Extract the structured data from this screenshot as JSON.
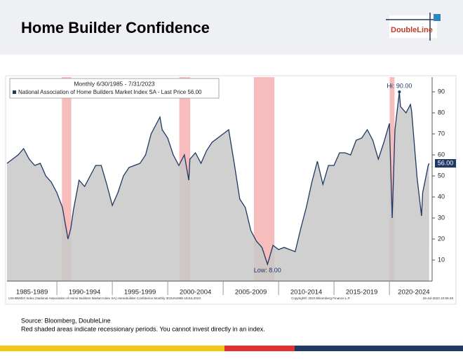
{
  "header": {
    "title": "Home Builder Confidence",
    "logo": "DoubleLine"
  },
  "chart_data": {
    "type": "area",
    "legend_title": "Monthly 6/30/1985 - 7/31/2023",
    "series": [
      {
        "name": "National Association of Home Builders Market Index SA - Last Price 56.00",
        "color": "#1f3864",
        "fill": "#c8c8c8",
        "x": [
          1985.5,
          1986,
          1986.5,
          1987,
          1987.5,
          1988,
          1988.5,
          1989,
          1989.5,
          1990,
          1990.5,
          1991,
          1991.25,
          1991.5,
          1992,
          1992.5,
          1993,
          1993.5,
          1994,
          1994.5,
          1995,
          1995.5,
          1996,
          1996.5,
          1997,
          1997.5,
          1998,
          1998.5,
          1999,
          1999.3,
          1999.5,
          2000,
          2000.5,
          2001,
          2001.5,
          2001.9,
          2002,
          2002.5,
          2003,
          2003.5,
          2004,
          2004.5,
          2005,
          2005.5,
          2006,
          2006.5,
          2007,
          2007.5,
          2008,
          2008.5,
          2009,
          2009.5,
          2010,
          2010.5,
          2011,
          2011.5,
          2012,
          2012.5,
          2013,
          2013.5,
          2014,
          2014.5,
          2015,
          2015.5,
          2016,
          2016.5,
          2017,
          2017.5,
          2018,
          2018.5,
          2019,
          2019.5,
          2020,
          2020.25,
          2020.5,
          2020.9,
          2021,
          2021.5,
          2021.9,
          2022,
          2022.5,
          2022.9,
          2023,
          2023.5,
          2023.58
        ],
        "values": [
          56,
          58,
          60,
          63,
          58,
          55,
          56,
          50,
          47,
          42,
          35,
          20,
          25,
          34,
          48,
          45,
          50,
          55,
          55,
          46,
          36,
          42,
          50,
          54,
          55,
          56,
          60,
          70,
          75,
          78,
          72,
          68,
          60,
          55,
          60,
          48,
          58,
          61,
          56,
          62,
          66,
          68,
          70,
          72,
          56,
          39,
          35,
          24,
          19,
          16,
          8,
          17,
          15,
          16,
          15,
          14,
          25,
          35,
          47,
          57,
          46,
          55,
          55,
          61,
          61,
          60,
          67,
          68,
          72,
          67,
          58,
          66,
          75,
          30,
          72,
          90,
          83,
          80,
          84,
          81,
          49,
          31,
          42,
          55,
          56
        ]
      }
    ],
    "recessions": [
      [
        1990.58,
        1991.17
      ],
      [
        2001.17,
        2001.9
      ],
      [
        2007.9,
        2009.5
      ],
      [
        2020.15,
        2020.33
      ]
    ],
    "high_label": "Hi: 90.00",
    "low_label": "Low: 8.00",
    "last_label": "56.00",
    "xlim": [
      1985.5,
      2023.6
    ],
    "xticks": [
      {
        "value": 1987.75,
        "label": "1985-1989"
      },
      {
        "value": 1992.5,
        "label": "1990-1994"
      },
      {
        "value": 1997.5,
        "label": "1995-1999"
      },
      {
        "value": 2002.5,
        "label": "2000-2004"
      },
      {
        "value": 2007.5,
        "label": "2005-2009"
      },
      {
        "value": 2012.5,
        "label": "2010-2014"
      },
      {
        "value": 2017.5,
        "label": "2015-2019"
      },
      {
        "value": 2022.2,
        "label": "2020-2024"
      }
    ],
    "xseparators": [
      1990,
      1995,
      2000,
      2005,
      2010,
      2015,
      2020
    ],
    "ylim": [
      0,
      97
    ],
    "yticks": [
      10,
      20,
      30,
      40,
      50,
      60,
      70,
      80,
      90
    ],
    "footer_left": "USHBMIDX Index (National Association of Home Builders Market Index SA) Homebuilder Confidence  Monthly 30JUN1985-18JUL2023",
    "footer_mid": "Copyright© 2023 Bloomberg Finance L.P.",
    "footer_right": "18-Jul-2023 10:59:49"
  },
  "notes": [
    "Source: Bloomberg, DoubleLine",
    "Red shaded areas indicate recessionary periods. You cannot invest directly in an index."
  ]
}
